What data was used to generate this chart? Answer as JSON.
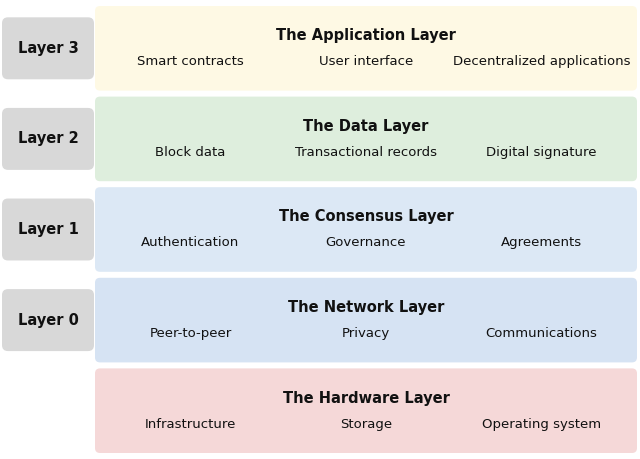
{
  "layers": [
    {
      "label": "Layer 3",
      "title": "The Application Layer",
      "items": [
        "Smart contracts",
        "User interface",
        "Decentralized applications"
      ],
      "box_color": "#fef9e4",
      "box_edge": "#e8d98e"
    },
    {
      "label": "Layer 2",
      "title": "The Data Layer",
      "items": [
        "Block data",
        "Transactional records",
        "Digital signature"
      ],
      "box_color": "#deeedd",
      "box_edge": "#b5d4b5"
    },
    {
      "label": "Layer 1",
      "title": "The Consensus Layer",
      "items": [
        "Authentication",
        "Governance",
        "Agreements"
      ],
      "box_color": "#dce8f5",
      "box_edge": "#b5cce8"
    },
    {
      "label": "Layer 0",
      "title": "The Network Layer",
      "items": [
        "Peer-to-peer",
        "Privacy",
        "Communications"
      ],
      "box_color": "#d6e3f3",
      "box_edge": "#afc8e4"
    },
    {
      "label": null,
      "title": "The Hardware Layer",
      "items": [
        "Infrastructure",
        "Storage",
        "Operating system"
      ],
      "box_color": "#f5d8d8",
      "box_edge": "#e4b0b0"
    }
  ],
  "label_box_color": "#d8d8d8",
  "label_box_edge": "#bbbbbb",
  "background_color": "#ffffff",
  "title_fontsize": 10.5,
  "item_fontsize": 9.5,
  "label_fontsize": 10.5
}
